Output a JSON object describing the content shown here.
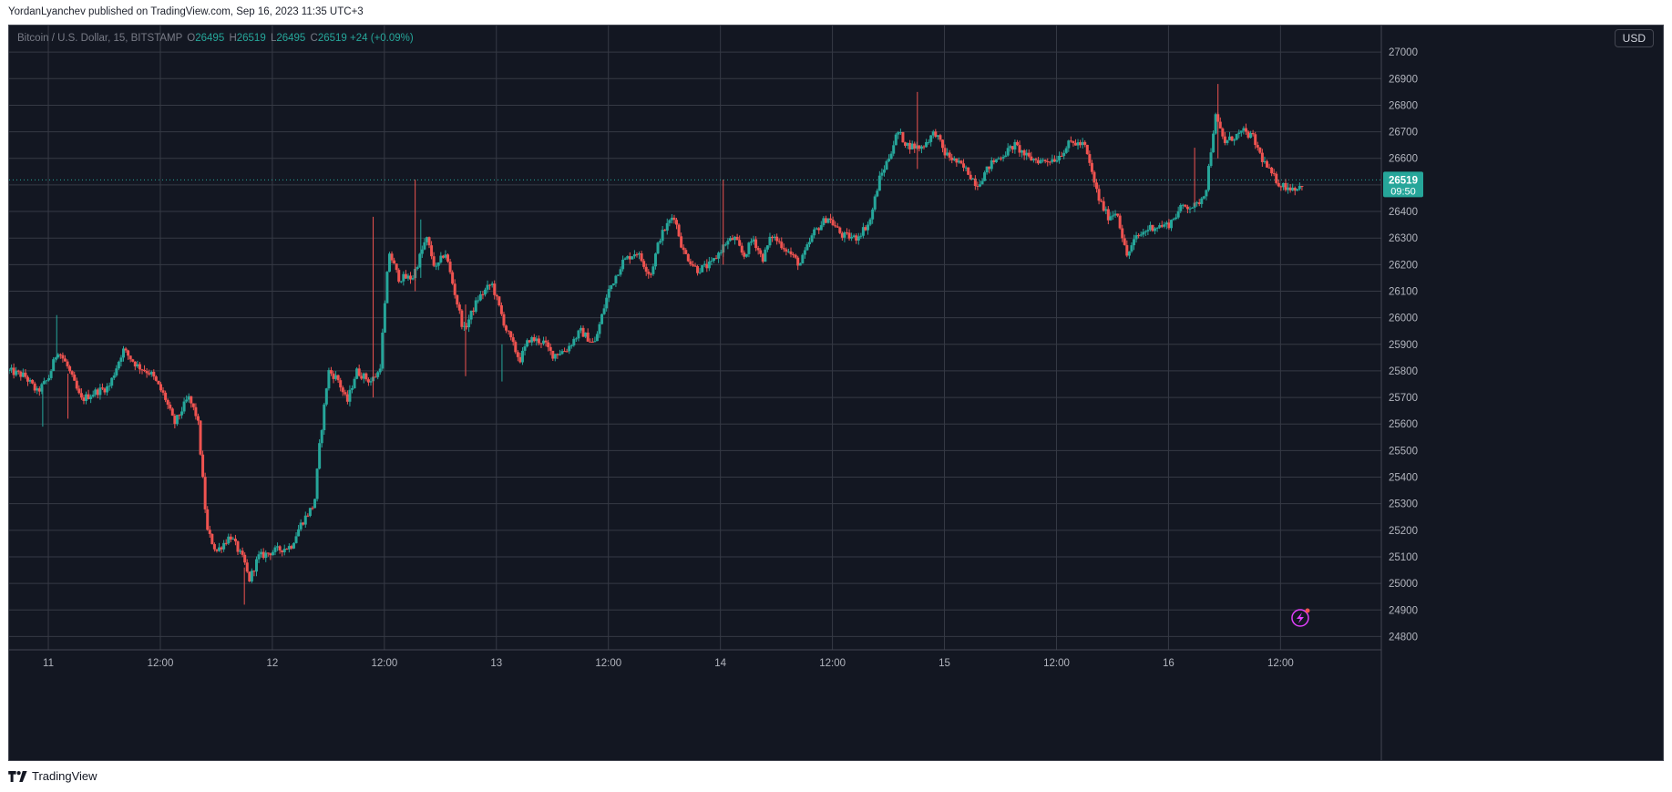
{
  "publish_line": "YordanLyanchev published on TradingView.com, Sep 16, 2023 11:35 UTC+3",
  "legend": {
    "symbol": "Bitcoin / U.S. Dollar, 15, BITSTAMP",
    "o_key": "O",
    "o_val": "26495",
    "h_key": "H",
    "h_val": "26519",
    "l_key": "L",
    "l_val": "26495",
    "c_key": "C",
    "c_val": "26519",
    "change": "+24 (+0.09%)"
  },
  "currency_button": "USD",
  "price_tag": {
    "price": "26519",
    "countdown": "09:50"
  },
  "footer_brand": "TradingView",
  "colors": {
    "up": "#26a69a",
    "down": "#ef5350",
    "background": "#131722",
    "grid": "#363a45"
  },
  "icons": [
    "lightning-icon",
    "tradingview-logo-icon"
  ],
  "chart_data": {
    "type": "candlestick",
    "title": "Bitcoin / U.S. Dollar, 15, BITSTAMP",
    "ylim": [
      24750,
      27100
    ],
    "y_ticks": [
      24800,
      24900,
      25000,
      25100,
      25200,
      25300,
      25400,
      25500,
      25600,
      25700,
      25800,
      25900,
      26000,
      26100,
      26200,
      26300,
      26400,
      26500,
      26600,
      26700,
      26800,
      26900,
      27000
    ],
    "x_tick_labels": [
      "11",
      "12:00",
      "12",
      "12:00",
      "13",
      "12:00",
      "14",
      "12:00",
      "15",
      "12:00",
      "16",
      "12:00"
    ],
    "x_tick_hours": [
      0,
      12,
      24,
      36,
      48,
      60,
      72,
      84,
      96,
      108,
      120,
      132
    ],
    "x_range_hours": [
      -4.2,
      142.8
    ],
    "close_anchors": [
      [
        -4.2,
        25800
      ],
      [
        -2.5,
        25780
      ],
      [
        -1.2,
        25720
      ],
      [
        0,
        25770
      ],
      [
        1,
        25880
      ],
      [
        2,
        25820
      ],
      [
        3.5,
        25690
      ],
      [
        5,
        25720
      ],
      [
        6.5,
        25740
      ],
      [
        8,
        25880
      ],
      [
        9.5,
        25820
      ],
      [
        11,
        25790
      ],
      [
        12.5,
        25700
      ],
      [
        13.5,
        25600
      ],
      [
        15,
        25700
      ],
      [
        16,
        25620
      ],
      [
        17,
        25200
      ],
      [
        18,
        25120
      ],
      [
        19.5,
        25180
      ],
      [
        21,
        25080
      ],
      [
        21.5,
        25010
      ],
      [
        22.5,
        25100
      ],
      [
        24,
        25120
      ],
      [
        26,
        25140
      ],
      [
        27,
        25220
      ],
      [
        28.5,
        25300
      ],
      [
        29,
        25500
      ],
      [
        30,
        25800
      ],
      [
        31,
        25770
      ],
      [
        32,
        25680
      ],
      [
        33,
        25800
      ],
      [
        34.5,
        25760
      ],
      [
        35.5,
        25800
      ],
      [
        36.5,
        26250
      ],
      [
        37.5,
        26150
      ],
      [
        39,
        26150
      ],
      [
        40.5,
        26300
      ],
      [
        41.5,
        26180
      ],
      [
        42.5,
        26250
      ],
      [
        43.5,
        26100
      ],
      [
        44.5,
        25950
      ],
      [
        46,
        26070
      ],
      [
        47.5,
        26130
      ],
      [
        49,
        25960
      ],
      [
        50.5,
        25840
      ],
      [
        51.5,
        25920
      ],
      [
        53,
        25910
      ],
      [
        54,
        25860
      ],
      [
        55.5,
        25880
      ],
      [
        57,
        25950
      ],
      [
        58.5,
        25900
      ],
      [
        60,
        26100
      ],
      [
        61.5,
        26210
      ],
      [
        63,
        26250
      ],
      [
        64.5,
        26160
      ],
      [
        65.5,
        26300
      ],
      [
        67,
        26390
      ],
      [
        68,
        26250
      ],
      [
        69.5,
        26180
      ],
      [
        71,
        26200
      ],
      [
        72.5,
        26280
      ],
      [
        73.5,
        26300
      ],
      [
        74.5,
        26230
      ],
      [
        75.5,
        26300
      ],
      [
        76.5,
        26220
      ],
      [
        77.5,
        26310
      ],
      [
        79,
        26260
      ],
      [
        80.5,
        26200
      ],
      [
        82,
        26320
      ],
      [
        83.5,
        26380
      ],
      [
        85,
        26310
      ],
      [
        86.5,
        26300
      ],
      [
        88,
        26360
      ],
      [
        89,
        26520
      ],
      [
        90,
        26600
      ],
      [
        91,
        26700
      ],
      [
        92,
        26650
      ],
      [
        93.5,
        26640
      ],
      [
        95,
        26700
      ],
      [
        96,
        26620
      ],
      [
        97.5,
        26580
      ],
      [
        98.5,
        26550
      ],
      [
        99.5,
        26500
      ],
      [
        101,
        26580
      ],
      [
        102.5,
        26620
      ],
      [
        103.5,
        26650
      ],
      [
        105,
        26600
      ],
      [
        106.5,
        26590
      ],
      [
        108,
        26600
      ],
      [
        109.5,
        26660
      ],
      [
        111,
        26650
      ],
      [
        112.5,
        26450
      ],
      [
        113.5,
        26380
      ],
      [
        114.5,
        26400
      ],
      [
        115.5,
        26230
      ],
      [
        116.5,
        26300
      ],
      [
        118,
        26340
      ],
      [
        120,
        26350
      ],
      [
        121.5,
        26420
      ],
      [
        123,
        26420
      ],
      [
        124,
        26480
      ],
      [
        125,
        26760
      ],
      [
        126,
        26660
      ],
      [
        127,
        26680
      ],
      [
        128,
        26700
      ],
      [
        129,
        26680
      ],
      [
        130,
        26600
      ],
      [
        131,
        26540
      ],
      [
        132,
        26500
      ],
      [
        133,
        26490
      ],
      [
        134,
        26490
      ],
      [
        134.5,
        26519
      ]
    ],
    "highlighted_wicks": [
      [
        -0.6,
        25590,
        25740
      ],
      [
        0.9,
        25840,
        26010
      ],
      [
        2.1,
        25620,
        25790
      ],
      [
        21,
        24920,
        25060
      ],
      [
        34.8,
        25700,
        26380
      ],
      [
        39.3,
        26100,
        26520
      ],
      [
        39.9,
        26150,
        26370
      ],
      [
        44.7,
        25780,
        26050
      ],
      [
        48.6,
        25760,
        25900
      ],
      [
        72.3,
        26200,
        26520
      ],
      [
        93.1,
        26560,
        26850
      ],
      [
        125.3,
        26600,
        26880
      ],
      [
        122.8,
        26420,
        26640
      ]
    ],
    "last_close": 26519,
    "last_change": "+24 (+0.09%)"
  }
}
